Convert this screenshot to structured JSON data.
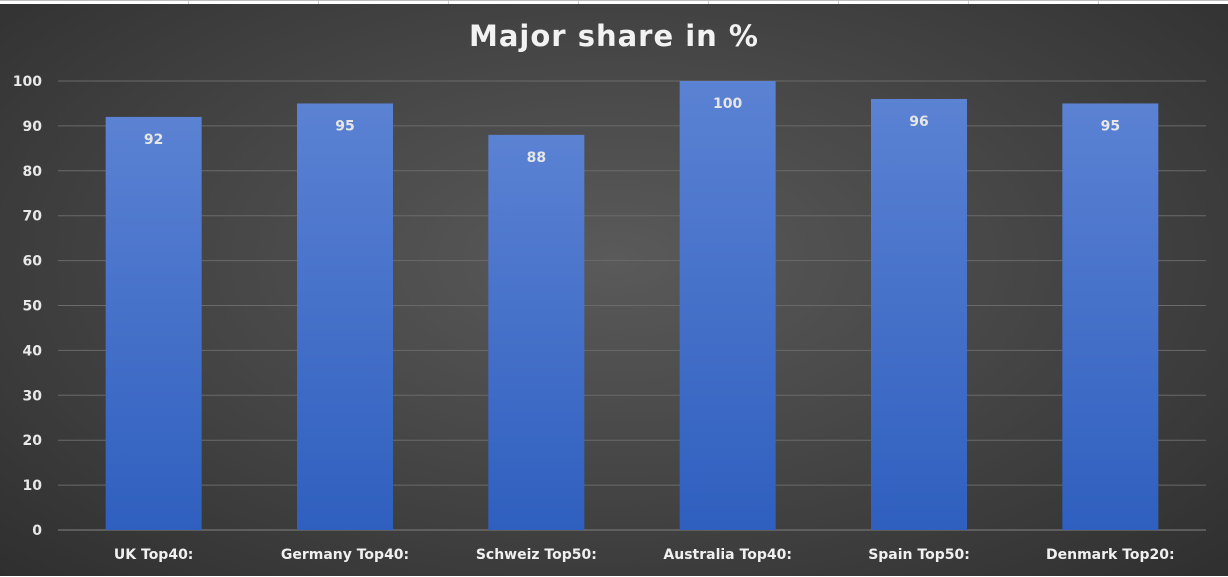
{
  "chart_data": {
    "type": "bar",
    "title": "Major share in %",
    "categories": [
      "UK Top40:",
      "Germany Top40:",
      "Schweiz Top50:",
      "Australia Top40:",
      "Spain Top50:",
      "Denmark Top20:"
    ],
    "values": [
      92,
      95,
      88,
      100,
      96,
      95
    ],
    "data_labels": [
      "92",
      "95",
      "88",
      "100",
      "96",
      "95"
    ],
    "y_ticks": [
      "0",
      "10",
      "20",
      "30",
      "40",
      "50",
      "60",
      "70",
      "80",
      "90",
      "100"
    ],
    "ylim": [
      0,
      100
    ],
    "xlabel": "",
    "ylabel": "",
    "grid": true,
    "legend": "none",
    "colors": {
      "bar_top": "#5b82d3",
      "bar_bottom": "#2f5fbf",
      "gridline": "#6a6a6a",
      "text": "#e8e8e8"
    }
  }
}
